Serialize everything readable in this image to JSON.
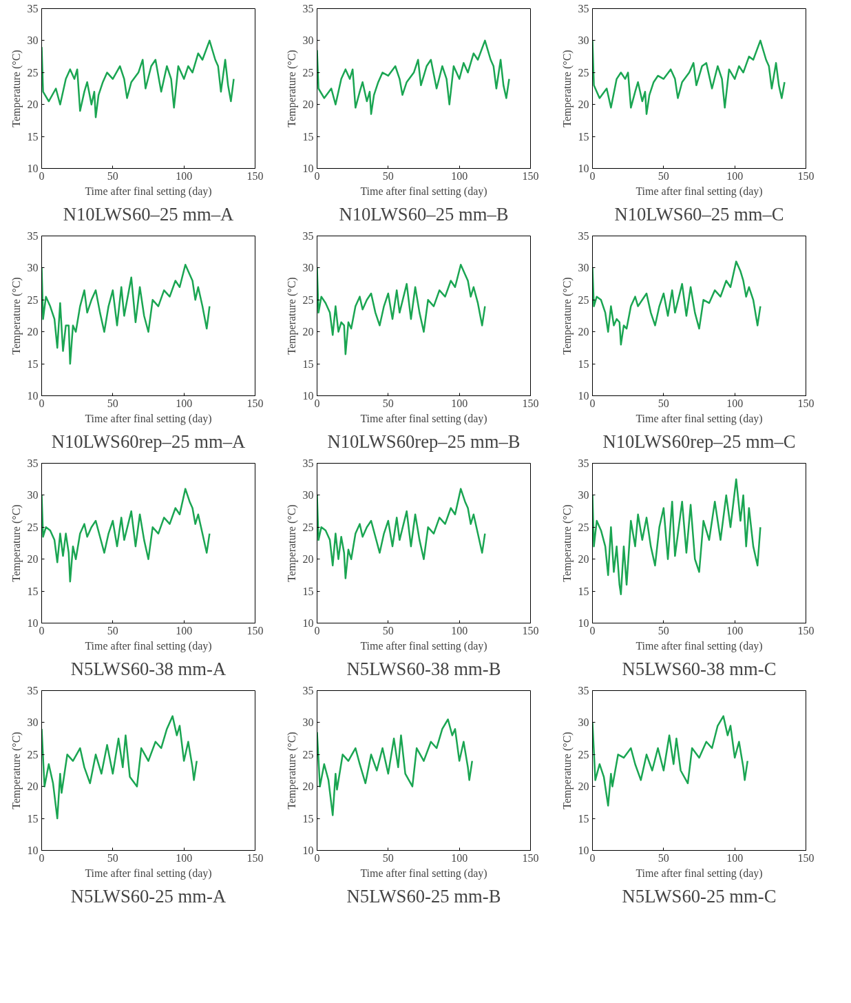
{
  "chart_data": [
    {
      "type": "line",
      "title": "N10LWS60–25 mm–A",
      "xlabel": "Time after final setting (day)",
      "ylabel": "Temperature (°C)",
      "xlim": [
        0,
        150
      ],
      "xticks": [
        0,
        50,
        100,
        150
      ],
      "ylim": [
        10,
        35
      ],
      "yticks": [
        10,
        15,
        20,
        25,
        30,
        35
      ],
      "series": [
        {
          "color": "#1aa552",
          "x": [
            0,
            1,
            5,
            10,
            13,
            17,
            20,
            23,
            25,
            27,
            30,
            32,
            35,
            37,
            38,
            40,
            43,
            46,
            50,
            55,
            58,
            60,
            63,
            68,
            71,
            73,
            77,
            80,
            84,
            88,
            91,
            93,
            96,
            100,
            103,
            106,
            110,
            113,
            118,
            122,
            124,
            126,
            129,
            131,
            133,
            135
          ],
          "values": [
            29,
            22,
            20.5,
            22.5,
            20,
            24,
            25.5,
            24,
            25.5,
            19,
            22,
            23.5,
            20,
            22,
            18,
            21.5,
            23.5,
            25,
            24,
            26,
            24,
            21,
            23.5,
            25,
            27,
            22.5,
            26,
            27,
            22,
            26,
            24,
            19.5,
            26,
            24,
            26,
            25,
            28,
            27,
            30,
            27,
            26,
            22,
            27,
            23,
            20.5,
            24
          ]
        }
      ]
    },
    {
      "type": "line",
      "title": "N10LWS60–25 mm–B",
      "xlabel": "Time after final setting (day)",
      "ylabel": "Temperature (°C)",
      "xlim": [
        0,
        150
      ],
      "xticks": [
        0,
        50,
        100,
        150
      ],
      "ylim": [
        10,
        35
      ],
      "yticks": [
        10,
        15,
        20,
        25,
        30,
        35
      ],
      "series": [
        {
          "color": "#1aa552",
          "x": [
            0,
            1,
            5,
            10,
            13,
            17,
            20,
            23,
            25,
            27,
            30,
            32,
            35,
            37,
            38,
            40,
            43,
            46,
            50,
            55,
            58,
            60,
            63,
            68,
            71,
            73,
            77,
            80,
            84,
            88,
            91,
            93,
            96,
            100,
            103,
            106,
            110,
            113,
            118,
            122,
            124,
            126,
            129,
            131,
            133,
            135
          ],
          "values": [
            28.5,
            22.5,
            21,
            22.5,
            20,
            24,
            25.5,
            24,
            25.5,
            19.5,
            22,
            23.5,
            20.5,
            22,
            18.5,
            21.5,
            23.5,
            25,
            24.5,
            26,
            24,
            21.5,
            23.5,
            25,
            27,
            23,
            26,
            27,
            22.5,
            26,
            24,
            20,
            26,
            24,
            26.5,
            25,
            28,
            27,
            30,
            27,
            26,
            22.5,
            27,
            23,
            21,
            24
          ]
        }
      ]
    },
    {
      "type": "line",
      "title": "N10LWS60–25 mm–C",
      "xlabel": "Time after final setting (day)",
      "ylabel": "Temperature (°C)",
      "xlim": [
        0,
        150
      ],
      "xticks": [
        0,
        50,
        100,
        150
      ],
      "ylim": [
        10,
        35
      ],
      "yticks": [
        10,
        15,
        20,
        25,
        30,
        35
      ],
      "series": [
        {
          "color": "#1aa552",
          "x": [
            0,
            1,
            5,
            10,
            13,
            17,
            20,
            23,
            25,
            27,
            30,
            32,
            35,
            37,
            38,
            40,
            43,
            46,
            50,
            55,
            58,
            60,
            63,
            68,
            71,
            73,
            77,
            80,
            84,
            88,
            91,
            93,
            96,
            100,
            103,
            106,
            110,
            113,
            118,
            122,
            124,
            126,
            129,
            131,
            133,
            135
          ],
          "values": [
            30,
            23,
            21,
            22.5,
            19.5,
            24,
            25,
            24,
            25,
            19.5,
            22,
            23.5,
            20.5,
            22,
            18.5,
            21.5,
            23.5,
            24.5,
            24,
            25.5,
            24,
            21,
            23.5,
            25,
            26.5,
            23,
            26,
            26.5,
            22.5,
            26,
            24,
            19.5,
            25.5,
            24,
            26,
            25,
            27.5,
            27,
            30,
            27,
            26,
            22.5,
            26.5,
            23,
            21,
            23.5
          ]
        }
      ]
    },
    {
      "type": "line",
      "title": "N10LWS60rep–25 mm–A",
      "xlabel": "Time after final setting (day)",
      "ylabel": "Temperature (°C)",
      "xlim": [
        0,
        150
      ],
      "xticks": [
        0,
        50,
        100,
        150
      ],
      "ylim": [
        10,
        35
      ],
      "yticks": [
        10,
        15,
        20,
        25,
        30,
        35
      ],
      "series": [
        {
          "color": "#1aa552",
          "x": [
            0,
            1,
            3,
            6,
            9,
            11,
            13,
            15,
            17,
            19,
            20,
            22,
            24,
            27,
            30,
            32,
            35,
            38,
            41,
            44,
            47,
            50,
            53,
            56,
            58,
            63,
            66,
            69,
            72,
            75,
            78,
            82,
            86,
            90,
            94,
            97,
            101,
            104,
            106,
            108,
            110,
            113,
            116,
            118
          ],
          "values": [
            30,
            22,
            25.5,
            24,
            22,
            17.5,
            24.5,
            17,
            21,
            21,
            15,
            21,
            20,
            24,
            26.5,
            23,
            25,
            26.5,
            23,
            20,
            24,
            26.5,
            21,
            27,
            22.5,
            28.5,
            21.5,
            27,
            22.5,
            20,
            25,
            24,
            26.5,
            25.5,
            28,
            27,
            30.5,
            29,
            28,
            25,
            27,
            24,
            20.5,
            24
          ]
        }
      ]
    },
    {
      "type": "line",
      "title": "N10LWS60rep–25 mm–B",
      "xlabel": "Time after final setting (day)",
      "ylabel": "Temperature (°C)",
      "xlim": [
        0,
        150
      ],
      "xticks": [
        0,
        50,
        100,
        150
      ],
      "ylim": [
        10,
        35
      ],
      "yticks": [
        10,
        15,
        20,
        25,
        30,
        35
      ],
      "series": [
        {
          "color": "#1aa552",
          "x": [
            0,
            1,
            3,
            6,
            9,
            11,
            13,
            15,
            17,
            19,
            20,
            22,
            24,
            27,
            30,
            32,
            35,
            38,
            41,
            44,
            47,
            50,
            53,
            56,
            58,
            63,
            66,
            69,
            72,
            75,
            78,
            82,
            86,
            90,
            94,
            97,
            101,
            104,
            106,
            108,
            110,
            113,
            116,
            118
          ],
          "values": [
            30,
            23,
            25.5,
            24.5,
            23,
            19.5,
            24,
            20,
            21.5,
            21,
            16.5,
            21.5,
            20.5,
            24,
            25.5,
            23.5,
            25,
            26,
            23,
            21,
            24,
            26,
            22,
            26.5,
            23,
            27.5,
            22,
            27,
            23,
            20,
            25,
            24,
            26.5,
            25.5,
            28,
            27,
            30.5,
            29,
            28,
            25.5,
            27,
            24.5,
            21,
            24
          ]
        }
      ]
    },
    {
      "type": "line",
      "title": "N10LWS60rep–25 mm–C",
      "xlabel": "Time after final setting (day)",
      "ylabel": "Temperature (°C)",
      "xlim": [
        0,
        150
      ],
      "xticks": [
        0,
        50,
        100,
        150
      ],
      "ylim": [
        10,
        35
      ],
      "yticks": [
        10,
        15,
        20,
        25,
        30,
        35
      ],
      "series": [
        {
          "color": "#1aa552",
          "x": [
            0,
            1,
            3,
            6,
            9,
            11,
            13,
            15,
            17,
            19,
            20,
            22,
            24,
            27,
            30,
            32,
            35,
            38,
            41,
            44,
            47,
            50,
            53,
            56,
            58,
            63,
            66,
            69,
            72,
            75,
            78,
            82,
            86,
            90,
            94,
            97,
            101,
            104,
            106,
            108,
            110,
            113,
            116,
            118
          ],
          "values": [
            30,
            24,
            25.5,
            25,
            23,
            20,
            24,
            21,
            22,
            21.5,
            18,
            21,
            20.5,
            24,
            25.5,
            24,
            25,
            26,
            23,
            21,
            24,
            26,
            22.5,
            26.5,
            23,
            27.5,
            22.5,
            27,
            23,
            20.5,
            25,
            24.5,
            26.5,
            25.5,
            28,
            27,
            31,
            29.5,
            28,
            25.5,
            27,
            25,
            21,
            24
          ]
        }
      ]
    },
    {
      "type": "line",
      "title": "N5LWS60-38 mm-A",
      "xlabel": "Time after final setting (day)",
      "ylabel": "Temperature (°C)",
      "xlim": [
        0,
        150
      ],
      "xticks": [
        0,
        50,
        100,
        150
      ],
      "ylim": [
        10,
        35
      ],
      "yticks": [
        10,
        15,
        20,
        25,
        30,
        35
      ],
      "series": [
        {
          "color": "#1aa552",
          "x": [
            0,
            1,
            3,
            6,
            9,
            11,
            13,
            15,
            17,
            19,
            20,
            22,
            24,
            27,
            30,
            32,
            35,
            38,
            41,
            44,
            47,
            50,
            53,
            56,
            58,
            63,
            66,
            69,
            72,
            75,
            78,
            82,
            86,
            90,
            94,
            97,
            101,
            104,
            106,
            108,
            110,
            113,
            116,
            118
          ],
          "values": [
            30,
            23.5,
            25,
            24.5,
            23,
            19.5,
            24,
            20.5,
            24,
            21,
            16.5,
            22,
            20,
            24,
            25.5,
            23.5,
            25,
            26,
            23.5,
            21,
            24,
            26,
            22,
            26.5,
            23,
            27.5,
            22,
            27,
            23,
            20,
            25,
            24,
            26.5,
            25.5,
            28,
            27,
            31,
            29,
            28,
            25.5,
            27,
            24,
            21,
            24
          ]
        }
      ]
    },
    {
      "type": "line",
      "title": "N5LWS60-38 mm-B",
      "xlabel": "Time after final setting (day)",
      "ylabel": "Temperature (°C)",
      "xlim": [
        0,
        150
      ],
      "xticks": [
        0,
        50,
        100,
        150
      ],
      "ylim": [
        10,
        35
      ],
      "yticks": [
        10,
        15,
        20,
        25,
        30,
        35
      ],
      "series": [
        {
          "color": "#1aa552",
          "x": [
            0,
            1,
            3,
            6,
            9,
            11,
            13,
            15,
            17,
            19,
            20,
            22,
            24,
            27,
            30,
            32,
            35,
            38,
            41,
            44,
            47,
            50,
            53,
            56,
            58,
            63,
            66,
            69,
            72,
            75,
            78,
            82,
            86,
            90,
            94,
            97,
            101,
            104,
            106,
            108,
            110,
            113,
            116,
            118
          ],
          "values": [
            30,
            23,
            25,
            24.5,
            23,
            19,
            24,
            20,
            23.5,
            21,
            17,
            21.5,
            20,
            24,
            25.5,
            23.5,
            25,
            26,
            23.5,
            21,
            24,
            26,
            22,
            26.5,
            23,
            27.5,
            22,
            27,
            23,
            20,
            25,
            24,
            26.5,
            25.5,
            28,
            27,
            31,
            29,
            28,
            25.5,
            27,
            24,
            21,
            24
          ]
        }
      ]
    },
    {
      "type": "line",
      "title": "N5LWS60-38 mm-C",
      "xlabel": "Time after final setting (day)",
      "ylabel": "Temperature (°C)",
      "xlim": [
        0,
        150
      ],
      "xticks": [
        0,
        50,
        100,
        150
      ],
      "ylim": [
        10,
        35
      ],
      "yticks": [
        10,
        15,
        20,
        25,
        30,
        35
      ],
      "series": [
        {
          "color": "#1aa552",
          "x": [
            0,
            1,
            3,
            6,
            9,
            11,
            13,
            15,
            17,
            19,
            20,
            22,
            24,
            27,
            30,
            32,
            35,
            38,
            41,
            44,
            47,
            50,
            53,
            56,
            58,
            63,
            66,
            69,
            72,
            75,
            78,
            82,
            86,
            90,
            94,
            97,
            101,
            104,
            106,
            108,
            110,
            113,
            116,
            118
          ],
          "values": [
            30,
            22,
            26,
            24.5,
            22,
            17.5,
            25,
            18,
            22,
            16,
            14.5,
            22,
            16,
            26,
            22,
            27,
            23,
            26.5,
            22,
            19,
            25,
            28,
            20,
            29,
            20.5,
            29,
            21,
            28.5,
            20,
            18,
            26,
            23,
            29,
            23,
            30,
            25,
            32.5,
            26,
            30,
            22,
            28,
            22,
            19,
            25
          ]
        }
      ]
    },
    {
      "type": "line",
      "title": "N5LWS60-25 mm-A",
      "xlabel": "Time after final setting (day)",
      "ylabel": "Temperature (°C)",
      "xlim": [
        0,
        150
      ],
      "xticks": [
        0,
        50,
        100,
        150
      ],
      "ylim": [
        10,
        35
      ],
      "yticks": [
        10,
        15,
        20,
        25,
        30,
        35
      ],
      "series": [
        {
          "color": "#1aa552",
          "x": [
            0,
            2,
            5,
            8,
            11,
            13,
            14,
            18,
            22,
            27,
            30,
            34,
            38,
            42,
            46,
            50,
            54,
            57,
            59,
            62,
            67,
            70,
            75,
            80,
            84,
            88,
            92,
            95,
            97,
            100,
            103,
            106,
            107,
            109
          ],
          "values": [
            29,
            20,
            23.5,
            20.5,
            15,
            22,
            19,
            25,
            24,
            26,
            23,
            20.5,
            25,
            22,
            26.5,
            22,
            27.5,
            23,
            28,
            21.5,
            20,
            26,
            24,
            27,
            26,
            29,
            31,
            28,
            29.5,
            24,
            27,
            23,
            21,
            24
          ]
        }
      ]
    },
    {
      "type": "line",
      "title": "N5LWS60-25 mm-B",
      "xlabel": "Time after final setting (day)",
      "ylabel": "Temperature (°C)",
      "xlim": [
        0,
        150
      ],
      "xticks": [
        0,
        50,
        100,
        150
      ],
      "ylim": [
        10,
        35
      ],
      "yticks": [
        10,
        15,
        20,
        25,
        30,
        35
      ],
      "series": [
        {
          "color": "#1aa552",
          "x": [
            0,
            2,
            5,
            8,
            11,
            13,
            14,
            18,
            22,
            27,
            30,
            34,
            38,
            42,
            46,
            50,
            54,
            57,
            59,
            62,
            67,
            70,
            75,
            80,
            84,
            88,
            92,
            95,
            97,
            100,
            103,
            106,
            107,
            109
          ],
          "values": [
            28.5,
            20,
            23.5,
            21,
            15.5,
            22,
            19.5,
            25,
            24,
            26,
            23.5,
            20.5,
            25,
            22.5,
            26,
            22,
            27.5,
            23,
            28,
            22,
            20,
            26,
            24,
            27,
            26,
            29,
            30.5,
            28,
            29,
            24,
            27,
            23,
            21,
            24
          ]
        }
      ]
    },
    {
      "type": "line",
      "title": "N5LWS60-25 mm-C",
      "xlabel": "Time after final setting (day)",
      "ylabel": "Temperature (°C)",
      "xlim": [
        0,
        150
      ],
      "xticks": [
        0,
        50,
        100,
        150
      ],
      "ylim": [
        10,
        35
      ],
      "yticks": [
        10,
        15,
        20,
        25,
        30,
        35
      ],
      "series": [
        {
          "color": "#1aa552",
          "x": [
            0,
            2,
            5,
            8,
            11,
            13,
            14,
            18,
            22,
            27,
            30,
            34,
            38,
            42,
            46,
            50,
            54,
            57,
            59,
            62,
            67,
            70,
            75,
            80,
            84,
            88,
            92,
            95,
            97,
            100,
            103,
            106,
            107,
            109
          ],
          "values": [
            30,
            21,
            23.5,
            21.5,
            17,
            22,
            20,
            25,
            24.5,
            26,
            23.5,
            21,
            25,
            22.5,
            26,
            22.5,
            28,
            23.5,
            27.5,
            22.5,
            20.5,
            26,
            24.5,
            27,
            26,
            29.5,
            31,
            28,
            29.5,
            24.5,
            27,
            23,
            21,
            24
          ]
        }
      ]
    }
  ]
}
